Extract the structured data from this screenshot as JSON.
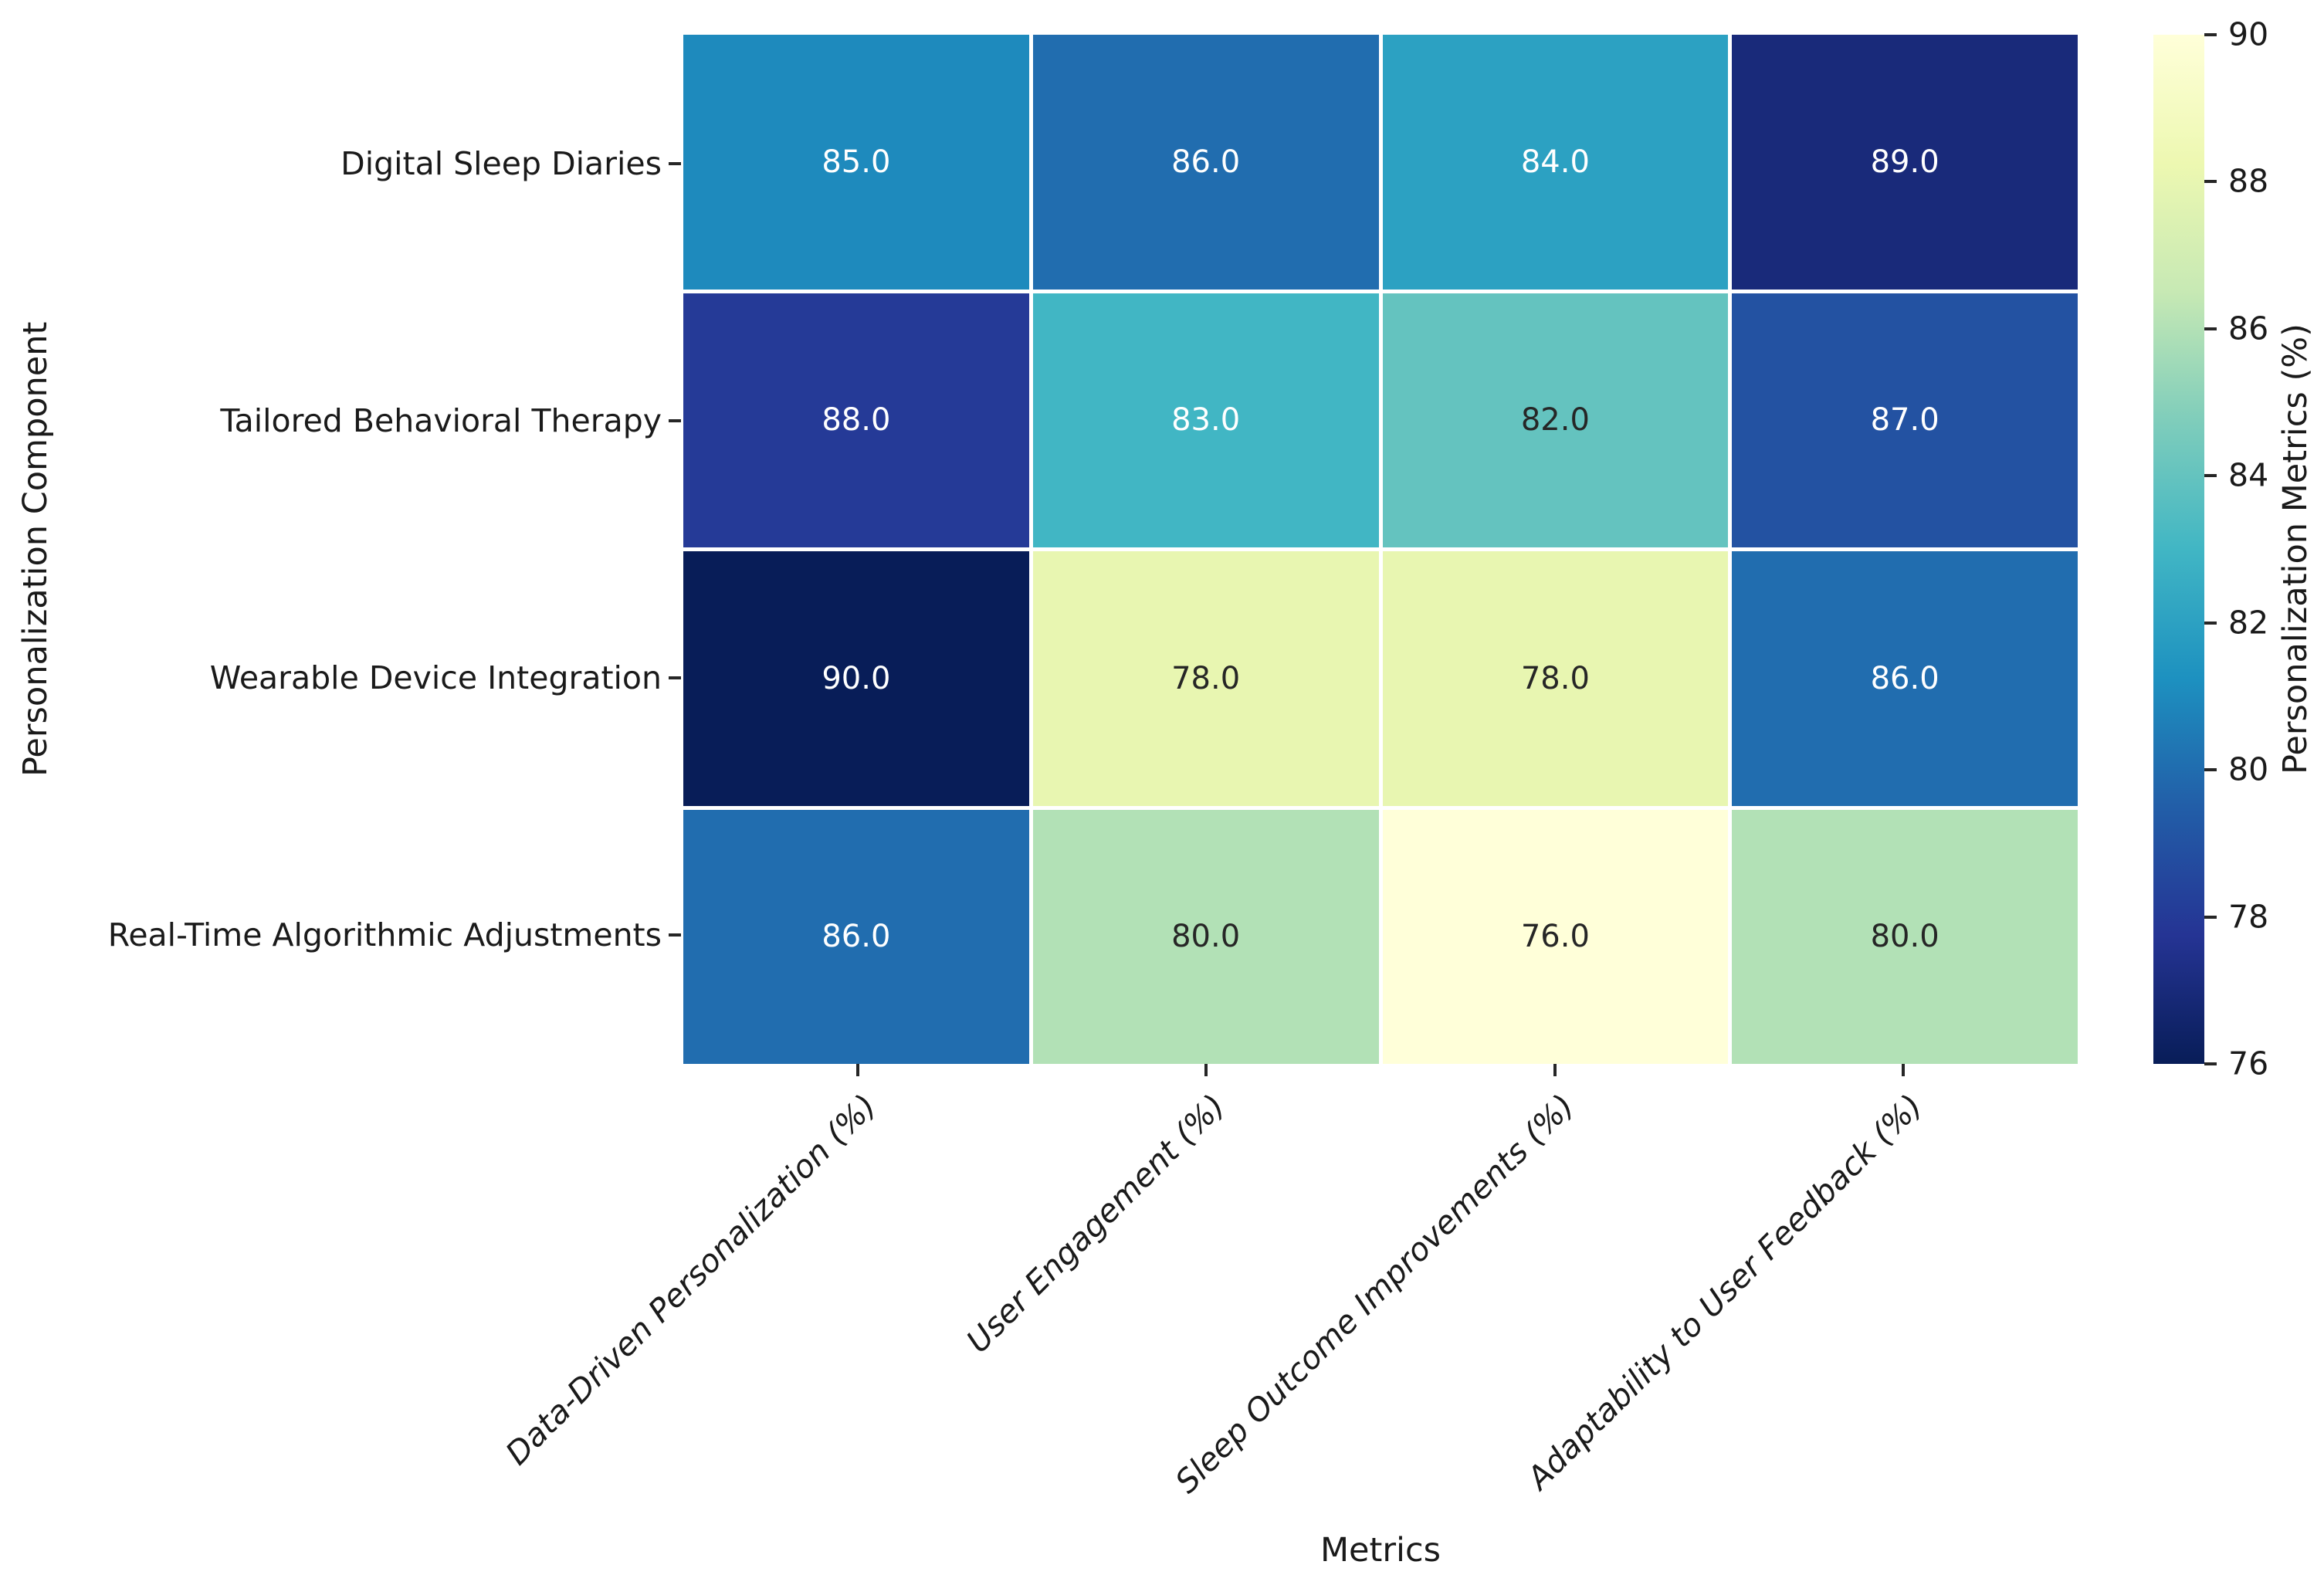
{
  "chart_data": {
    "type": "heatmap",
    "xlabel": "Metrics",
    "ylabel": "Personalization Component",
    "categories_x": [
      "Data-Driven Personalization (%)",
      "User Engagement (%)",
      "Sleep Outcome Improvements (%)",
      "Adaptability to User Feedback (%)"
    ],
    "categories_y": [
      "Digital Sleep Diaries",
      "Tailored Behavioral Therapy",
      "Wearable Device Integration",
      "Real-Time Algorithmic Adjustments"
    ],
    "values": [
      [
        85.0,
        86.0,
        84.0,
        89.0
      ],
      [
        88.0,
        83.0,
        82.0,
        87.0
      ],
      [
        90.0,
        78.0,
        78.0,
        86.0
      ],
      [
        86.0,
        80.0,
        76.0,
        80.0
      ]
    ],
    "annotation_decimals": 1,
    "grid": "white-lines-between-cells",
    "legend_position": "colorbar-right",
    "colorbar": {
      "label": "Personalization Metrics (%)",
      "vmin": 76,
      "vmax": 90,
      "ticks": [
        76,
        78,
        80,
        82,
        84,
        86,
        88,
        90
      ]
    },
    "colormap": {
      "name": "YlGnBu",
      "stops": [
        "#ffffd9",
        "#edf8b1",
        "#c7e9b4",
        "#7fcdbb",
        "#41b6c4",
        "#1d91c0",
        "#225ea8",
        "#253494",
        "#081d58"
      ]
    },
    "annotation_colors": {
      "light": "#ffffff",
      "dark": "#262626",
      "luminance_threshold": 0.408
    },
    "axis_text_color": "#1a1a1a",
    "background_color": "#ffffff"
  }
}
